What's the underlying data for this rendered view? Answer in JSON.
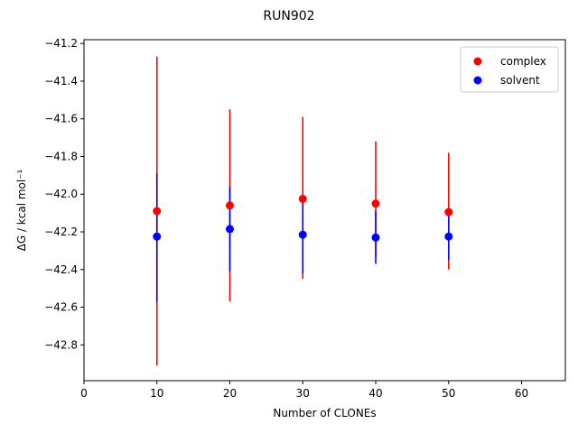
{
  "chart_data": {
    "type": "scatter",
    "title": "RUN902",
    "xlabel": "Number of CLONEs",
    "ylabel": "ΔG / kcal mol⁻¹",
    "xlim": [
      0,
      66
    ],
    "ylim": [
      -42.99,
      -41.18
    ],
    "x_ticks": [
      0,
      10,
      20,
      30,
      40,
      50,
      60
    ],
    "x_tick_labels": [
      "0",
      "10",
      "20",
      "30",
      "40",
      "50",
      "60"
    ],
    "y_ticks": [
      -42.8,
      -42.6,
      -42.4,
      -42.2,
      -42.0,
      -41.8,
      -41.6,
      -41.4,
      -41.2
    ],
    "y_tick_labels": [
      "−42.8",
      "−42.6",
      "−42.4",
      "−42.2",
      "−42.0",
      "−41.8",
      "−41.6",
      "−41.4",
      "−41.2"
    ],
    "grid": false,
    "legend_position": "top-right",
    "series": [
      {
        "name": "complex",
        "color": "#ff0000",
        "x": [
          10,
          20,
          30,
          40,
          50
        ],
        "y": [
          -42.09,
          -42.06,
          -42.025,
          -42.05,
          -42.095
        ],
        "err_low": [
          -42.91,
          -42.57,
          -42.45,
          -42.33,
          -42.4
        ],
        "err_high": [
          -41.27,
          -41.55,
          -41.59,
          -41.72,
          -41.78
        ]
      },
      {
        "name": "solvent",
        "color": "#0000ff",
        "x": [
          10,
          20,
          30,
          40,
          50
        ],
        "y": [
          -42.225,
          -42.185,
          -42.215,
          -42.23,
          -42.225
        ],
        "err_low": [
          -42.57,
          -42.41,
          -42.42,
          -42.37,
          -42.35
        ],
        "err_high": [
          -41.89,
          -41.96,
          -42.02,
          -42.09,
          -42.11
        ]
      }
    ]
  }
}
